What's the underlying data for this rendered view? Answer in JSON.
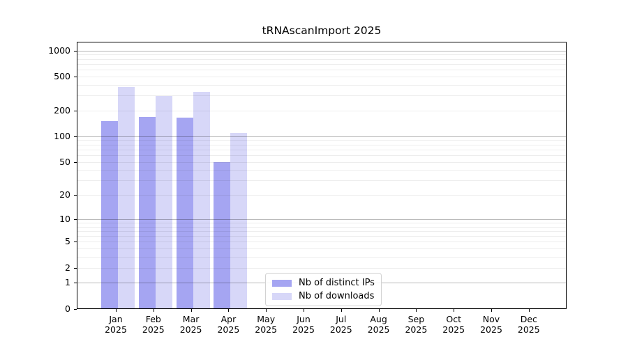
{
  "figure": {
    "title": "tRNAscanImport 2025"
  },
  "chart_data": {
    "type": "bar",
    "title": "tRNAscanImport 2025",
    "xlabel": "",
    "ylabel": "",
    "x_categories": [
      [
        "Jan",
        "2025"
      ],
      [
        "Feb",
        "2025"
      ],
      [
        "Mar",
        "2025"
      ],
      [
        "Apr",
        "2025"
      ],
      [
        "May",
        "2025"
      ],
      [
        "Jun",
        "2025"
      ],
      [
        "Jul",
        "2025"
      ],
      [
        "Aug",
        "2025"
      ],
      [
        "Sep",
        "2025"
      ],
      [
        "Oct",
        "2025"
      ],
      [
        "Nov",
        "2025"
      ],
      [
        "Dec",
        "2025"
      ]
    ],
    "series": [
      {
        "key": "distinct-ips",
        "name": "Nb of distinct IPs",
        "color": "#a5a5f2",
        "values": [
          150,
          170,
          165,
          50,
          0,
          0,
          0,
          0,
          0,
          0,
          0,
          0
        ]
      },
      {
        "key": "downloads",
        "name": "Nb of downloads",
        "color": "#d7d7f8",
        "values": [
          375,
          295,
          330,
          110,
          0,
          0,
          0,
          0,
          0,
          0,
          0,
          0
        ]
      }
    ],
    "y_ticks": [
      0,
      1,
      2,
      5,
      10,
      20,
      50,
      100,
      200,
      500,
      1000
    ],
    "y_scale": "log10(value+1)",
    "ylim": [
      0,
      1270
    ],
    "grid": {
      "on": true,
      "minor_color": "rgba(0,0,0,0.07)",
      "major_color": "rgba(0,0,0,0.28)",
      "major_values": [
        1,
        10,
        100,
        1000
      ]
    },
    "legend": {
      "position": "lower center",
      "labels": [
        "Nb of distinct IPs",
        "Nb of downloads"
      ]
    }
  }
}
